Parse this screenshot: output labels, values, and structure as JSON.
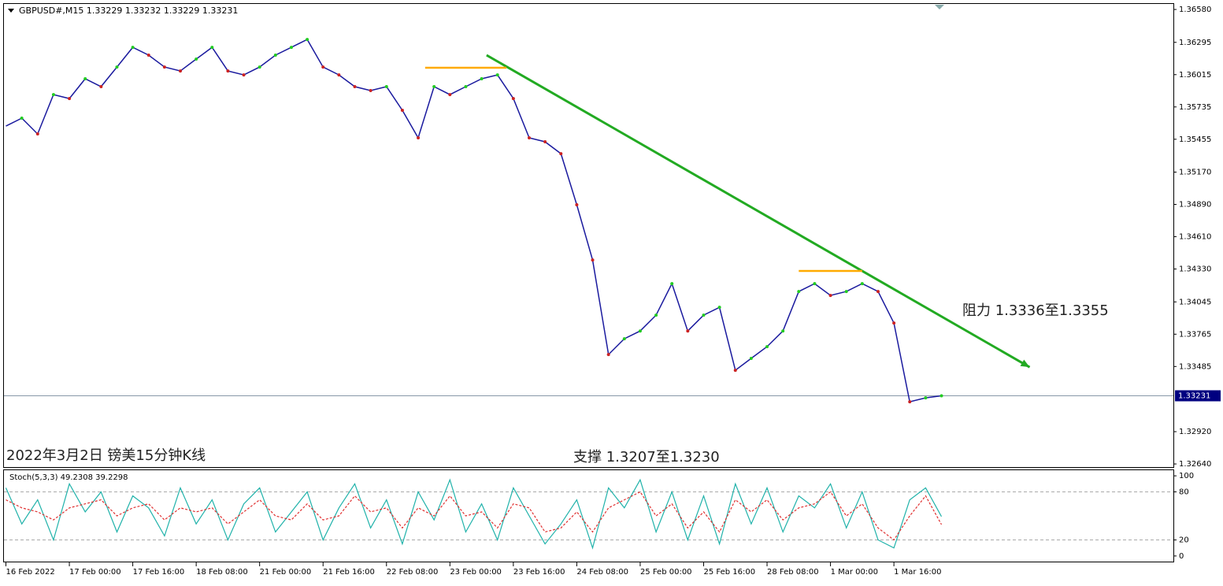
{
  "chart_data": [
    {
      "type": "line",
      "title": "GBPUSD#,M15  1.33229 1.33232 1.33229 1.33231",
      "color": "#1a1a9e",
      "x": [
        0,
        16,
        32,
        48,
        64,
        80,
        96,
        112,
        128,
        144,
        160,
        176,
        192,
        208,
        224,
        240,
        256,
        272,
        288,
        304,
        320,
        336,
        352,
        368,
        384,
        400,
        416,
        432,
        448,
        464,
        480,
        496,
        512,
        528,
        544,
        560,
        576,
        592,
        608,
        624,
        640,
        656,
        672,
        688,
        704,
        720,
        736,
        752,
        768,
        784,
        800,
        816,
        832,
        848,
        864,
        880,
        896,
        912,
        928,
        944
      ],
      "values": [
        1.35569,
        1.35638,
        1.35501,
        1.35842,
        1.35808,
        1.35979,
        1.35911,
        1.36081,
        1.36252,
        1.36184,
        1.36081,
        1.36047,
        1.3615,
        1.36252,
        1.36047,
        1.36013,
        1.36081,
        1.36184,
        1.36252,
        1.3632,
        1.36081,
        1.36013,
        1.35911,
        1.35877,
        1.35911,
        1.35706,
        1.35467,
        1.35911,
        1.35842,
        1.35911,
        1.35979,
        1.36013,
        1.35808,
        1.35467,
        1.35433,
        1.3533,
        1.34887,
        1.34408,
        1.33589,
        1.33725,
        1.33793,
        1.3393,
        1.34203,
        1.33793,
        1.3393,
        1.33998,
        1.33452,
        1.33555,
        1.33657,
        1.33793,
        1.34135,
        1.34203,
        1.34101,
        1.34135,
        1.34203,
        1.34135,
        1.33862,
        1.33179,
        1.33213,
        1.33231
      ],
      "xlim": [
        -2,
        1178
      ],
      "xticks": [
        {
          "value": 0,
          "label": "16 Feb 2022"
        },
        {
          "value": 64,
          "label": "17 Feb 00:00"
        },
        {
          "value": 128,
          "label": "17 Feb 16:00"
        },
        {
          "value": 192,
          "label": "18 Feb 08:00"
        },
        {
          "value": 256,
          "label": "21 Feb 00:00"
        },
        {
          "value": 320,
          "label": "21 Feb 16:00"
        },
        {
          "value": 384,
          "label": "22 Feb 08:00"
        },
        {
          "value": 448,
          "label": "23 Feb 00:00"
        },
        {
          "value": 512,
          "label": "23 Feb 16:00"
        },
        {
          "value": 576,
          "label": "24 Feb 08:00"
        },
        {
          "value": 640,
          "label": "25 Feb 00:00"
        },
        {
          "value": 704,
          "label": "25 Feb 16:00"
        },
        {
          "value": 768,
          "label": "28 Feb 08:00"
        },
        {
          "value": 832,
          "label": "1 Mar 00:00"
        },
        {
          "value": 896,
          "label": "1 Mar 16:00"
        }
      ],
      "ylim": [
        1.32613,
        1.36628
      ],
      "yticks": [
        {
          "value": 1.3658,
          "label": "1.36580"
        },
        1.36295,
        1.36015,
        1.35735,
        1.35455,
        {
          "value": 1.3517,
          "label": "1.35170"
        },
        {
          "value": 1.3489,
          "label": "1.34890"
        },
        {
          "value": 1.3461,
          "label": "1.34610"
        },
        {
          "value": 1.3433,
          "label": "1.34330"
        },
        1.34045,
        1.33765,
        1.33485,
        {
          "value": 1.3292,
          "label": "1.32920"
        },
        {
          "value": 1.3264,
          "label": "1.32640"
        }
      ],
      "current_price": 1.33231,
      "trendlines": [
        {
          "x": [
            485,
            1033
          ],
          "y": [
            1.36184,
            1.33479
          ],
          "color": "#22aa22",
          "arrow": true
        },
        {
          "x": [
            423,
            505
          ],
          "y": [
            1.36075,
            1.36075
          ],
          "color": "#ffaa00"
        },
        {
          "x": [
            800,
            864
          ],
          "y": [
            1.34313,
            1.34313
          ],
          "color": "#ffaa00"
        }
      ],
      "annotations": [
        {
          "text": "阻力 1.3336至1.3355"
        },
        {
          "text": "支撑 1.3207至1.3230"
        },
        {
          "text": "2022年3月2日 镑美15分钟K线"
        }
      ]
    },
    {
      "type": "stoch",
      "title": "Stoch(5,3,3) 49.2308 39.2298",
      "x": [
        0,
        16,
        32,
        48,
        64,
        80,
        96,
        112,
        128,
        144,
        160,
        176,
        192,
        208,
        224,
        240,
        256,
        272,
        288,
        304,
        320,
        336,
        352,
        368,
        384,
        400,
        416,
        432,
        448,
        464,
        480,
        496,
        512,
        528,
        544,
        560,
        576,
        592,
        608,
        624,
        640,
        656,
        672,
        688,
        704,
        720,
        736,
        752,
        768,
        784,
        800,
        816,
        832,
        848,
        864,
        880,
        896,
        912,
        928,
        944
      ],
      "series": [
        {
          "color": "#20b2aa",
          "values": [
            85,
            40,
            70,
            20,
            90,
            55,
            80,
            30,
            75,
            60,
            25,
            85,
            40,
            70,
            20,
            65,
            85,
            30,
            55,
            80,
            20,
            60,
            90,
            35,
            70,
            15,
            80,
            45,
            95,
            30,
            65,
            20,
            85,
            50,
            15,
            40,
            70,
            10,
            85,
            60,
            95,
            30,
            80,
            20,
            75,
            15,
            90,
            40,
            85,
            30,
            75,
            60,
            90,
            35,
            80,
            20,
            10,
            70,
            85,
            49.2308
          ]
        },
        {
          "color": "#e03030",
          "dashed": true,
          "values": [
            70,
            60,
            55,
            45,
            60,
            65,
            70,
            50,
            60,
            65,
            45,
            60,
            55,
            60,
            40,
            55,
            70,
            50,
            45,
            65,
            45,
            50,
            75,
            55,
            60,
            35,
            60,
            50,
            75,
            50,
            55,
            35,
            65,
            60,
            30,
            35,
            55,
            30,
            60,
            70,
            80,
            50,
            65,
            35,
            55,
            30,
            70,
            55,
            70,
            45,
            60,
            65,
            80,
            50,
            65,
            35,
            20,
            50,
            75,
            39.2298
          ]
        }
      ],
      "xlim": [
        -2,
        1178
      ],
      "ylim": [
        -7,
        107
      ],
      "yticks": [
        0,
        20,
        80,
        100
      ],
      "levels": [
        20,
        80
      ]
    }
  ]
}
